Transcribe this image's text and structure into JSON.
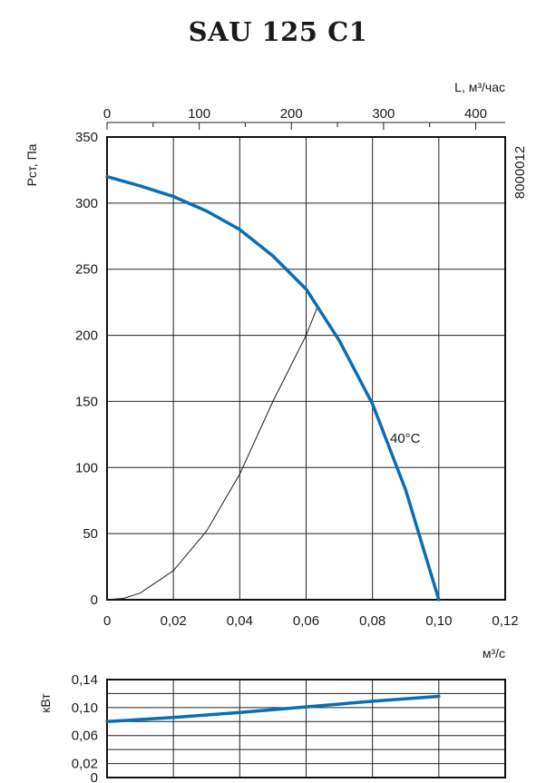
{
  "title": "SAU 125 C1",
  "code": "8000012",
  "chart_data": [
    {
      "type": "line",
      "title": "SAU 125 C1",
      "xlabel": "м³/с",
      "ylabel": "Pст, Па",
      "x2label": "L, м³/час",
      "xlim": [
        0,
        0.12
      ],
      "ylim": [
        0,
        350
      ],
      "x2lim": [
        0,
        432
      ],
      "xticks": [
        "0",
        "0,02",
        "0,04",
        "0,06",
        "0,08",
        "0,10",
        "0,12"
      ],
      "yticks": [
        "0",
        "50",
        "100",
        "150",
        "200",
        "250",
        "300",
        "350"
      ],
      "x2ticks": [
        "0",
        "100",
        "200",
        "300",
        "400"
      ],
      "grid": true,
      "series": [
        {
          "name": "40°C",
          "color": "#0b6db3",
          "x": [
            0,
            0.01,
            0.02,
            0.03,
            0.04,
            0.05,
            0.06,
            0.07,
            0.08,
            0.09,
            0.1
          ],
          "y": [
            320,
            313,
            305,
            294,
            280,
            260,
            235,
            196,
            148,
            83,
            0
          ]
        },
        {
          "name": "",
          "color": "#1a1a1a",
          "x": [
            0,
            0.005,
            0.01,
            0.02,
            0.03,
            0.04,
            0.05,
            0.06,
            0.0635
          ],
          "y": [
            0,
            1,
            5,
            22,
            52,
            95,
            150,
            200,
            222
          ]
        }
      ]
    },
    {
      "type": "line",
      "ylabel": "кВт",
      "xlim": [
        0,
        0.12
      ],
      "ylim": [
        0,
        0.14
      ],
      "yticks": [
        "0",
        "0,02",
        "0,06",
        "0,10",
        "0,14"
      ],
      "grid": true,
      "series": [
        {
          "name": "",
          "color": "#0b6db3",
          "x": [
            0,
            0.02,
            0.04,
            0.06,
            0.08,
            0.1
          ],
          "y": [
            0.08,
            0.086,
            0.093,
            0.101,
            0.109,
            0.116
          ]
        }
      ]
    }
  ]
}
